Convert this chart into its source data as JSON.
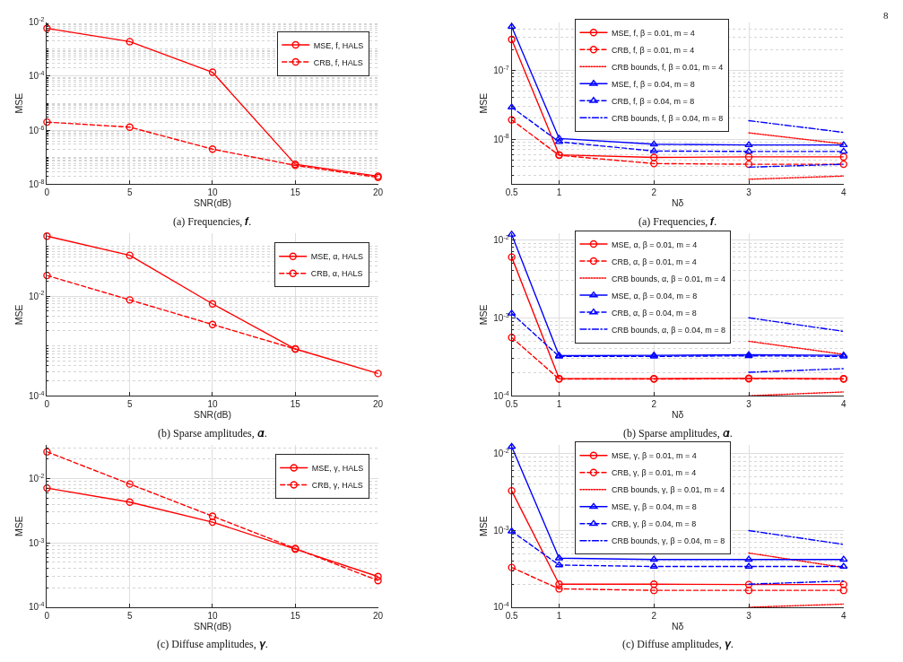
{
  "chart_data": [
    {
      "type": "line",
      "xlabel": "SNR(dB)",
      "ylabel": "MSE",
      "x": [
        0,
        5,
        10,
        15,
        20
      ],
      "xlim": [
        0,
        20
      ],
      "xticks": [
        0,
        5,
        10,
        15,
        20
      ],
      "ylim": [
        1e-08,
        0.01
      ],
      "yticks": [
        {
          "value": 1e-08,
          "label": "10$^{-8}$"
        },
        {
          "value": 1e-06,
          "label": "10$^{-6}$"
        },
        {
          "value": 0.0001,
          "label": "10$^{-4}$"
        },
        {
          "value": 0.01,
          "label": "10$^{-2}$"
        }
      ],
      "log": true,
      "grid": true,
      "legend": "top right",
      "series": [
        {
          "name": "MSE, f, HALS",
          "color": "#ff0000",
          "marker": "circle",
          "line_style": "solid",
          "values": [
            0.0059,
            0.0019,
            0.00014,
            5.5e-08,
            2e-08
          ]
        },
        {
          "name": "CRB, f, HALS",
          "color": "#ff0000",
          "marker": "circle",
          "line_style": "dashed",
          "values": [
            2e-06,
            1.3e-06,
            2e-07,
            5e-08,
            1.8e-08
          ]
        }
      ],
      "annotations": [
        "(a) Frequencies, 𝒇."
      ]
    },
    {
      "type": "line",
      "xlabel": "Nδ",
      "ylabel": "MSE",
      "x": [
        0.5,
        1,
        2,
        3,
        4
      ],
      "xlim": [
        0.5,
        4
      ],
      "xticks": [
        0.5,
        1,
        2,
        3,
        4
      ],
      "ylim": [
        2.2e-09,
        5e-07
      ],
      "yticks": [
        {
          "value": 1e-08,
          "label": "10$^{-8}$"
        },
        {
          "value": 1e-07,
          "label": "10$^{-7}$"
        }
      ],
      "log": true,
      "grid": true,
      "legend": "top",
      "series": [
        {
          "name": "MSE, f, β = 0.01, m = 4",
          "color": "#ff0000",
          "marker": "circle",
          "line_style": "solid",
          "values": [
            2.8e-07,
            5.9e-09,
            5.4e-09,
            5.5e-09,
            5.5e-09
          ]
        },
        {
          "name": "CRB, f, β = 0.01, m = 4",
          "color": "#ff0000",
          "marker": "circle",
          "line_style": "dashed",
          "values": [
            1.9e-08,
            5.8e-09,
            4.4e-09,
            4.3e-09,
            4.3e-09
          ]
        },
        {
          "name": "CRB bounds, f, β = 0.01, m = 4",
          "color": "#ff0000",
          "marker": "none",
          "line_style": "dotted",
          "values": [
            null,
            null,
            null,
            1.23e-08,
            8.5e-09
          ]
        },
        {
          "color": "#ff0000",
          "marker": "none",
          "line_style": "dotted",
          "values": [
            null,
            null,
            null,
            2.6e-09,
            2.9e-09
          ]
        },
        {
          "name": "MSE, f, β = 0.04, m = 8",
          "color": "#0000ff",
          "marker": "triangle",
          "line_style": "solid",
          "values": [
            4.3e-07,
            1.02e-08,
            8.4e-09,
            8.2e-09,
            8.2e-09
          ]
        },
        {
          "name": "CRB, f, β = 0.04, m = 8",
          "color": "#0000ff",
          "marker": "triangle",
          "line_style": "dashed",
          "values": [
            2.9e-08,
            9.1e-09,
            6.7e-09,
            6.6e-09,
            6.6e-09
          ]
        },
        {
          "name": "CRB bounds, f, β = 0.04, m = 8",
          "color": "#0000ff",
          "marker": "none",
          "line_style": "dashdot",
          "values": [
            null,
            null,
            null,
            1.85e-08,
            1.25e-08
          ]
        },
        {
          "color": "#0000ff",
          "marker": "none",
          "line_style": "dashdot",
          "values": [
            null,
            null,
            null,
            3.9e-09,
            4.3e-09
          ]
        }
      ],
      "annotations": [
        "(a) Frequencies, 𝒇.",
        "8"
      ]
    },
    {
      "type": "line",
      "xlabel": "SNR(dB)",
      "ylabel": "MSE",
      "x": [
        0,
        5,
        10,
        15,
        20
      ],
      "xlim": [
        0,
        20
      ],
      "xticks": [
        0,
        5,
        10,
        15,
        20
      ],
      "ylim": [
        0.0001,
        0.18
      ],
      "yticks": [
        {
          "value": 0.0001,
          "label": "10$^{-4}$"
        },
        {
          "value": 0.01,
          "label": "10$^{-2}$"
        }
      ],
      "log": true,
      "grid": true,
      "legend": "top right",
      "series": [
        {
          "name": "MSE, α, HALS",
          "color": "#ff0000",
          "marker": "circle",
          "line_style": "solid",
          "values": [
            0.16,
            0.066,
            0.007,
            0.00087,
            0.00028
          ]
        },
        {
          "name": "CRB, α, HALS",
          "color": "#ff0000",
          "marker": "circle",
          "line_style": "dashed",
          "values": [
            0.026,
            0.0084,
            0.0027,
            0.00087,
            null
          ]
        }
      ],
      "annotations": [
        "(b) Sparse amplitudes, 𝜶."
      ]
    },
    {
      "type": "line",
      "xlabel": "Nδ",
      "ylabel": "MSE",
      "x": [
        0.5,
        1,
        2,
        3,
        4
      ],
      "xlim": [
        0.5,
        4
      ],
      "xticks": [
        0.5,
        1,
        2,
        3,
        4
      ],
      "ylim": [
        0.0001,
        0.012
      ],
      "yticks": [
        {
          "value": 0.0001,
          "label": "10$^{-4}$"
        },
        {
          "value": 0.001,
          "label": "10$^{-3}$"
        },
        {
          "value": 0.01,
          "label": "10$^{-2}$"
        }
      ],
      "log": true,
      "grid": true,
      "legend": "top",
      "series": [
        {
          "name": "MSE, α, β = 0.01, m = 4",
          "color": "#ff0000",
          "marker": "circle",
          "line_style": "solid",
          "values": [
            0.006,
            0.000166,
            0.000166,
            0.000168,
            0.000166
          ]
        },
        {
          "name": "CRB, α, β = 0.01, m = 4",
          "color": "#ff0000",
          "marker": "circle",
          "line_style": "dashed",
          "values": [
            0.00056,
            0.000164,
            0.000164,
            0.000165,
            0.000164
          ]
        },
        {
          "name": "CRB bounds, α, β = 0.01, m = 4",
          "color": "#ff0000",
          "marker": "none",
          "line_style": "dotted",
          "values": [
            null,
            null,
            null,
            0.0005,
            0.00034
          ]
        },
        {
          "color": "#ff0000",
          "marker": "none",
          "line_style": "dotted",
          "values": [
            null,
            null,
            null,
            0.0001,
            0.000112
          ]
        },
        {
          "name": "MSE, α, β = 0.04, m = 8",
          "color": "#0000ff",
          "marker": "triangle",
          "line_style": "solid",
          "values": [
            0.0117,
            0.000327,
            0.00033,
            0.000335,
            0.00033
          ]
        },
        {
          "name": "CRB, α, β = 0.04, m = 8",
          "color": "#0000ff",
          "marker": "triangle",
          "line_style": "dashed",
          "values": [
            0.00114,
            0.00032,
            0.00032,
            0.000325,
            0.00032
          ]
        },
        {
          "name": "CRB bounds, α, β = 0.04, m = 8",
          "color": "#0000ff",
          "marker": "none",
          "line_style": "dashdot",
          "values": [
            null,
            null,
            null,
            0.001,
            0.00067
          ]
        },
        {
          "color": "#0000ff",
          "marker": "none",
          "line_style": "dashdot",
          "values": [
            null,
            null,
            null,
            0.0002,
            0.000223
          ]
        }
      ],
      "annotations": [
        "(b) Sparse amplitudes, 𝜶."
      ]
    },
    {
      "type": "line",
      "xlabel": "SNR(dB)",
      "ylabel": "MSE",
      "x": [
        0,
        5,
        10,
        15,
        20
      ],
      "xlim": [
        0,
        20
      ],
      "xticks": [
        0,
        5,
        10,
        15,
        20
      ],
      "ylim": [
        0.0001,
        0.033
      ],
      "yticks": [
        {
          "value": 0.0001,
          "label": "10$^{-4}$"
        },
        {
          "value": 0.001,
          "label": "10$^{-3}$"
        },
        {
          "value": 0.01,
          "label": "10$^{-2}$"
        }
      ],
      "log": true,
      "grid": true,
      "legend": "top right",
      "series": [
        {
          "name": "MSE, γ, HALS",
          "color": "#ff0000",
          "marker": "circle",
          "line_style": "solid",
          "values": [
            0.0071,
            0.0043,
            0.0021,
            0.0008,
            0.0003
          ]
        },
        {
          "name": "CRB, γ, HALS",
          "color": "#ff0000",
          "marker": "circle",
          "line_style": "dashed",
          "values": [
            0.026,
            0.0082,
            0.0026,
            0.00082,
            0.00026
          ]
        }
      ],
      "annotations": [
        "(c) Diffuse amplitudes, 𝜸."
      ]
    },
    {
      "type": "line",
      "xlabel": "Nδ",
      "ylabel": "MSE",
      "x": [
        0.5,
        1,
        2,
        3,
        4
      ],
      "xlim": [
        0.5,
        4
      ],
      "xticks": [
        0.5,
        1,
        2,
        3,
        4
      ],
      "ylim": [
        0.0001,
        0.013
      ],
      "yticks": [
        {
          "value": 0.0001,
          "label": "10$^{-4}$"
        },
        {
          "value": 0.001,
          "label": "10$^{-3}$"
        },
        {
          "value": 0.01,
          "label": "10$^{-2}$"
        }
      ],
      "log": true,
      "grid": true,
      "legend": "top",
      "series": [
        {
          "name": "MSE, γ, β = 0.01, m = 4",
          "color": "#ff0000",
          "marker": "circle",
          "line_style": "solid",
          "values": [
            0.0033,
            0.0002,
            0.0002,
            0.000198,
            0.000198
          ]
        },
        {
          "name": "CRB, γ, β = 0.01, m = 4",
          "color": "#ff0000",
          "marker": "circle",
          "line_style": "dashed",
          "values": [
            0.00033,
            0.000174,
            0.000166,
            0.000166,
            0.000166
          ]
        },
        {
          "name": "CRB bounds, γ, β = 0.01, m = 4",
          "color": "#ff0000",
          "marker": "none",
          "line_style": "dotted",
          "values": [
            null,
            null,
            null,
            0.00051,
            0.00033
          ]
        },
        {
          "color": "#ff0000",
          "marker": "none",
          "line_style": "dotted",
          "values": [
            null,
            null,
            null,
            0.0001,
            0.00011
          ]
        },
        {
          "name": "MSE, γ, β = 0.04, m = 8",
          "color": "#0000ff",
          "marker": "triangle",
          "line_style": "solid",
          "values": [
            0.0124,
            0.000437,
            0.00042,
            0.00042,
            0.00042
          ]
        },
        {
          "name": "CRB, γ, β = 0.04, m = 8",
          "color": "#0000ff",
          "marker": "triangle",
          "line_style": "dashed",
          "values": [
            0.00098,
            0.000355,
            0.00034,
            0.00034,
            0.00034
          ]
        },
        {
          "name": "CRB bounds, γ, β = 0.04, m = 8",
          "color": "#0000ff",
          "marker": "none",
          "line_style": "dashdot",
          "values": [
            null,
            null,
            null,
            0.001,
            0.00066
          ]
        },
        {
          "color": "#0000ff",
          "marker": "none",
          "line_style": "dashdot",
          "values": [
            null,
            null,
            null,
            0.0002,
            0.00022
          ]
        }
      ],
      "annotations": [
        "(c) Diffuse amplitudes, 𝜸."
      ]
    }
  ]
}
